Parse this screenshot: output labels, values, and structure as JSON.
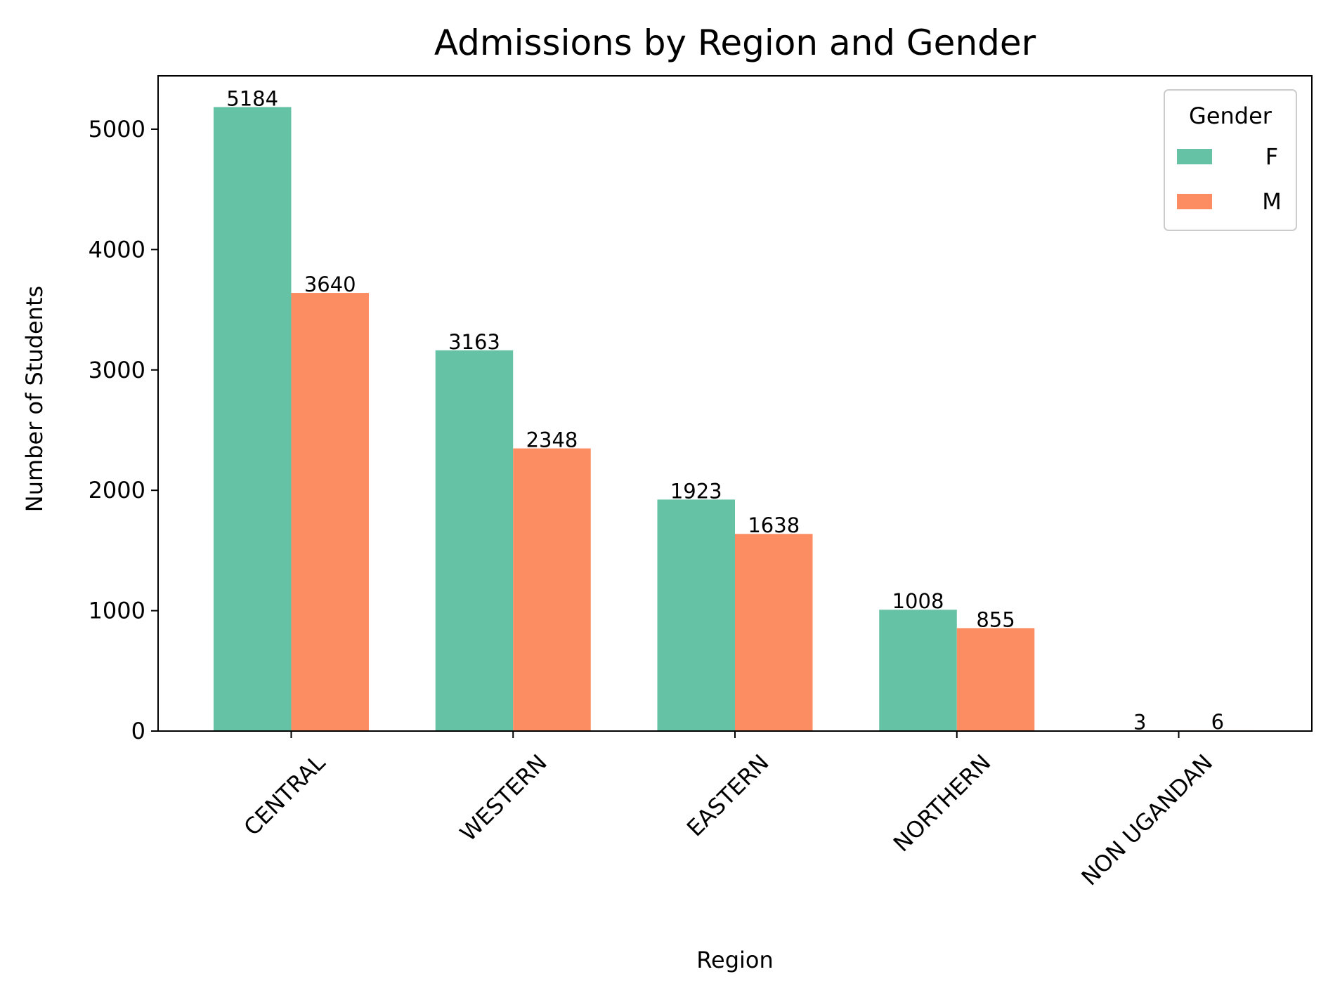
{
  "chart_data": {
    "type": "bar",
    "title": "Admissions by Region and Gender",
    "xlabel": "Region",
    "ylabel": "Number of Students",
    "categories": [
      "CENTRAL",
      "WESTERN",
      "EASTERN",
      "NORTHERN",
      "NON UGANDAN"
    ],
    "series": [
      {
        "name": "F",
        "values": [
          5184,
          3163,
          1923,
          1008,
          3
        ],
        "color": "#66c2a5"
      },
      {
        "name": "M",
        "values": [
          3640,
          2348,
          1638,
          855,
          6
        ],
        "color": "#fc8d62"
      }
    ],
    "ylim": [
      0,
      5443
    ],
    "yticks": [
      0,
      1000,
      2000,
      3000,
      4000,
      5000
    ],
    "yticks_labels": [
      "0",
      "1000",
      "2000",
      "3000",
      "4000",
      "5000"
    ],
    "legend": {
      "title": "Gender",
      "placement": "top-right"
    },
    "grid": false,
    "data_labels": true
  }
}
